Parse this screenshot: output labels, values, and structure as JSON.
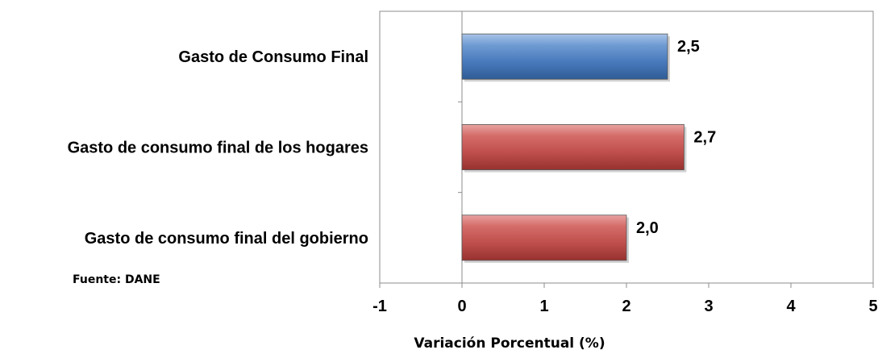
{
  "chart_data": {
    "type": "bar",
    "orientation": "horizontal",
    "categories": [
      "Gasto de Consumo Final",
      "Gasto de consumo final de los hogares",
      "Gasto de consumo final del gobierno"
    ],
    "values": [
      2.5,
      2.7,
      2.0
    ],
    "data_labels": [
      "2,5",
      "2,7",
      "2,0"
    ],
    "bar_colors": [
      "#4f81bd",
      "#c0504d",
      "#c0504d"
    ],
    "xlabel": "Variación Porcentual (%)",
    "xlim": [
      -1,
      5
    ],
    "x_ticks": [
      -1,
      0,
      1,
      2,
      3,
      4,
      5
    ],
    "x_tick_labels": [
      "-1",
      "0",
      "1",
      "2",
      "3",
      "4",
      "5"
    ],
    "grid": false,
    "legend": "none",
    "source_note": "Fuente: DANE"
  }
}
